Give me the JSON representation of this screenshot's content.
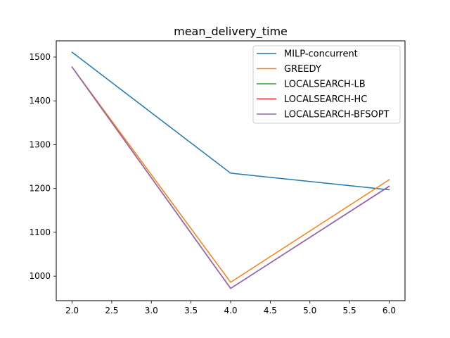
{
  "chart_data": {
    "type": "line",
    "title": "mean_delivery_time",
    "xlabel": "",
    "ylabel": "",
    "x": [
      2.0,
      4.0,
      6.0
    ],
    "xlim": [
      1.8,
      6.2
    ],
    "ylim": [
      944,
      1537
    ],
    "xticks": [
      2.0,
      2.5,
      3.0,
      3.5,
      4.0,
      4.5,
      5.0,
      5.5,
      6.0
    ],
    "xtick_labels": [
      "2.0",
      "2.5",
      "3.0",
      "3.5",
      "4.0",
      "4.5",
      "5.0",
      "5.5",
      "6.0"
    ],
    "yticks": [
      1000,
      1100,
      1200,
      1300,
      1400,
      1500
    ],
    "ytick_labels": [
      "1000",
      "1100",
      "1200",
      "1300",
      "1400",
      "1500"
    ],
    "grid": false,
    "legend_position": "top-right",
    "series": [
      {
        "name": "MILP-concurrent",
        "color": "#1f77b4",
        "values": [
          1511,
          1235,
          1197
        ]
      },
      {
        "name": "GREEDY",
        "color": "#ff7f0e",
        "values": [
          1477,
          986,
          1220
        ]
      },
      {
        "name": "LOCALSEARCH-LB",
        "color": "#2ca02c",
        "values": [
          1477,
          972,
          1205
        ]
      },
      {
        "name": "LOCALSEARCH-HC",
        "color": "#d62728",
        "values": [
          1477,
          972,
          1205
        ]
      },
      {
        "name": "LOCALSEARCH-BFSOPT",
        "color": "#9467bd",
        "values": [
          1477,
          972,
          1205
        ]
      }
    ]
  }
}
